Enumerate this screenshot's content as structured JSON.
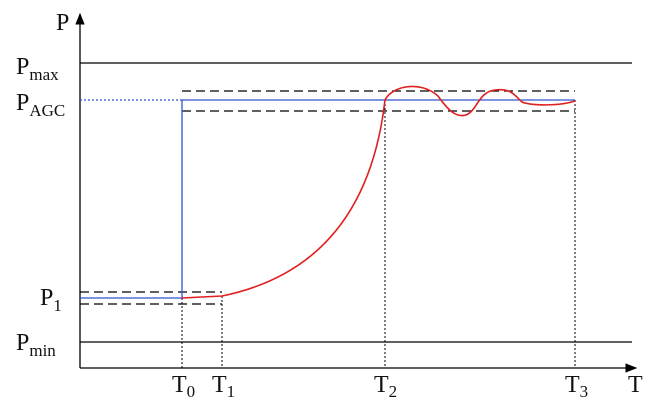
{
  "axes": {
    "y_label": "P",
    "x_label": "T"
  },
  "levels": [
    {
      "main": "P",
      "sub": "max"
    },
    {
      "main": "P",
      "sub": "AGC"
    },
    {
      "main": "P",
      "sub": "1"
    },
    {
      "main": "P",
      "sub": "min"
    }
  ],
  "times": [
    {
      "main": "T",
      "sub": "0"
    },
    {
      "main": "T",
      "sub": "1"
    },
    {
      "main": "T",
      "sub": "2"
    },
    {
      "main": "T",
      "sub": "3"
    }
  ]
}
